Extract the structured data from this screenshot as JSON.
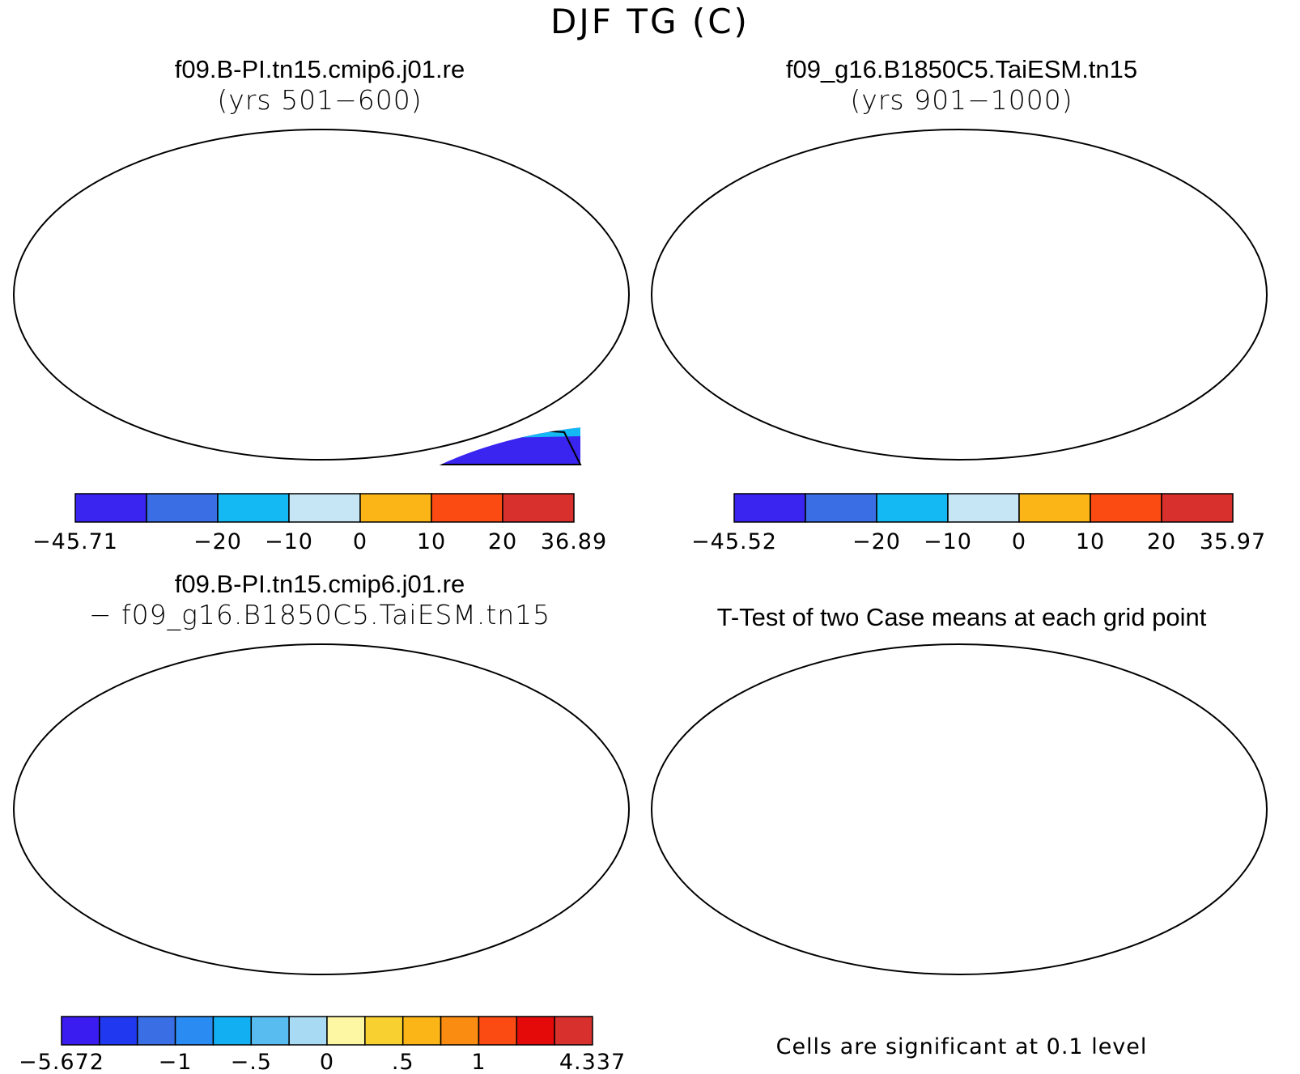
{
  "figure_title": "DJF TG (C)",
  "panels": [
    {
      "case_name": "f09.B-PI.tn15.cmip6.j01.re",
      "period": "(yrs 501−600)",
      "colorbar": {
        "labels": [
          "−45.71",
          "−20",
          "−10",
          "0",
          "10",
          "20",
          "36.89"
        ],
        "label_positions": [
          0,
          2,
          3,
          4,
          5,
          6,
          7
        ],
        "colors": [
          "#3a24f0",
          "#3a6ee4",
          "#14b8f2",
          "#c6e6f6",
          "#fbb516",
          "#fb4a12",
          "#d8302c"
        ]
      }
    },
    {
      "case_name": "f09_g16.B1850C5.TaiESM.tn15",
      "period": "(yrs 901−1000)",
      "colorbar": {
        "labels": [
          "−45.52",
          "−20",
          "−10",
          "0",
          "10",
          "20",
          "35.97"
        ],
        "label_positions": [
          0,
          2,
          3,
          4,
          5,
          6,
          7
        ],
        "colors": [
          "#3a24f0",
          "#3a6ee4",
          "#14b8f2",
          "#c6e6f6",
          "#fbb516",
          "#fb4a12",
          "#d8302c"
        ]
      }
    },
    {
      "case_name": "f09.B-PI.tn15.cmip6.j01.re",
      "period": "− f09_g16.B1850C5.TaiESM.tn15",
      "colorbar": {
        "labels": [
          "−5.672",
          "−1",
          "−.5",
          "0",
          ".5",
          "1",
          "4.337"
        ],
        "label_positions": [
          0,
          3,
          5,
          7,
          9,
          11,
          14
        ],
        "colors": [
          "#3a1cf0",
          "#2038f0",
          "#3a6ee4",
          "#2a8cf2",
          "#12b0f2",
          "#58bcf0",
          "#a8daf4",
          "#fdf6a2",
          "#f8d030",
          "#fbb516",
          "#fb8c12",
          "#fb4a12",
          "#e40a0a",
          "#d8302c"
        ]
      }
    },
    {
      "case_name": "T-Test of two Case means at each grid point",
      "significance_color": "#ff0000",
      "note": "Cells are significant at 0.1 level"
    }
  ]
}
